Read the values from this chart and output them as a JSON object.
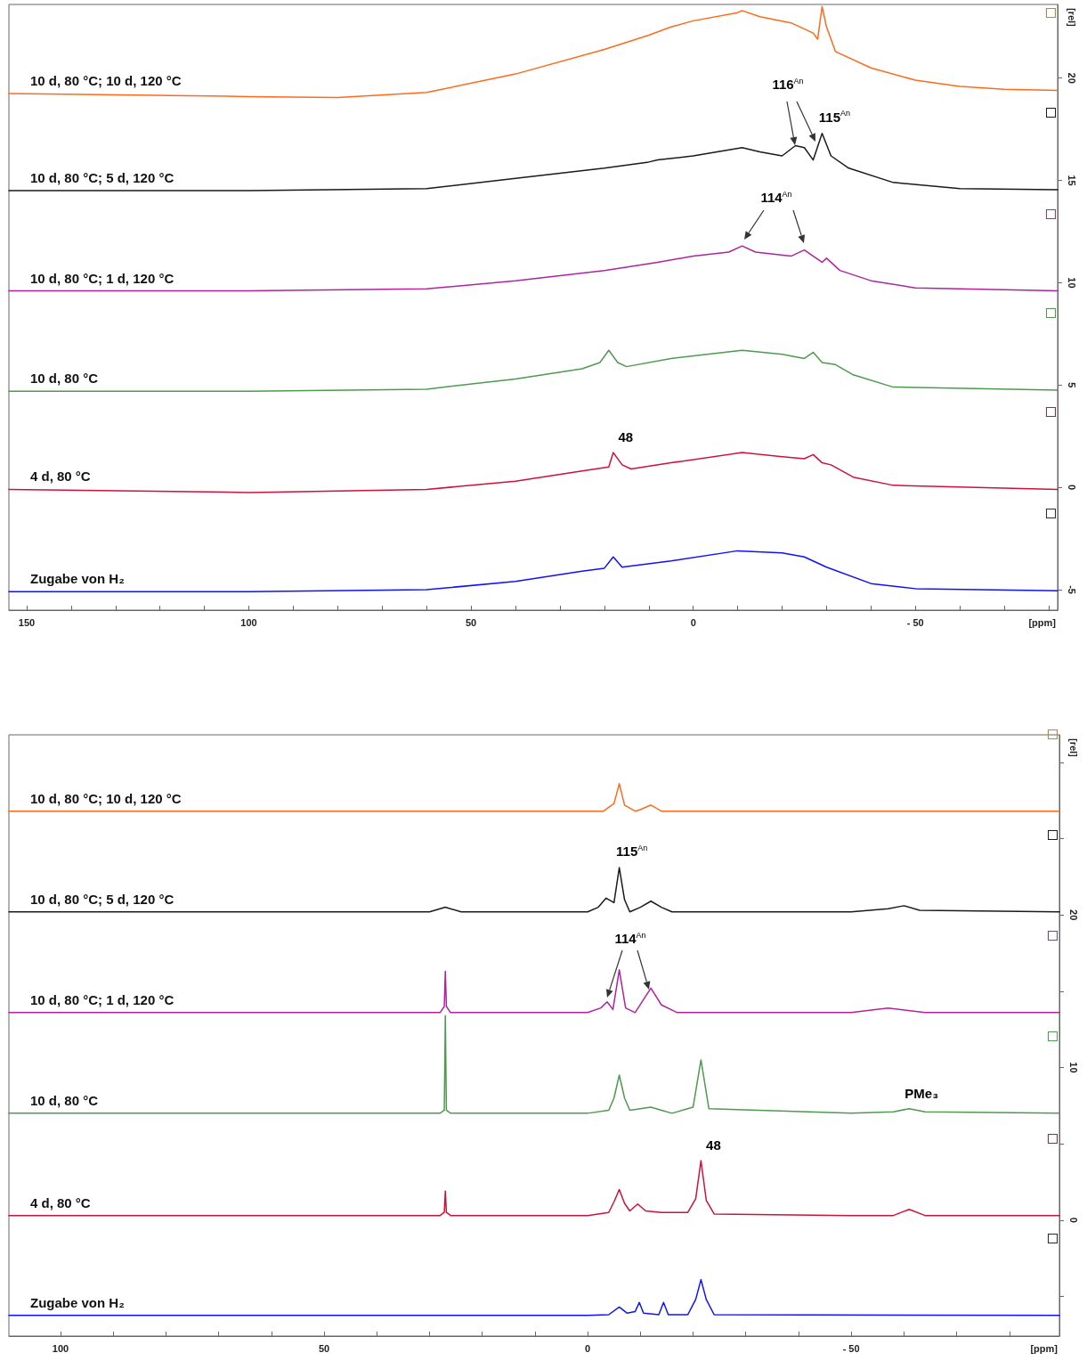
{
  "chart_data": [
    {
      "type": "line",
      "xlabel": "[ppm]",
      "ylabel": "[rel]",
      "xlim": [
        154,
        -82
      ],
      "ylim": [
        -6,
        23.6
      ],
      "xticks": [
        150,
        {
          "value": 140,
          "label": null
        },
        {
          "value": 130,
          "label": null
        },
        {
          "value": 120,
          "label": null
        },
        {
          "value": 110,
          "label": null
        },
        100,
        {
          "value": 90,
          "label": null
        },
        {
          "value": 80,
          "label": null
        },
        {
          "value": 70,
          "label": null
        },
        {
          "value": 60,
          "label": null
        },
        50,
        {
          "value": 40,
          "label": null
        },
        {
          "value": 30,
          "label": null
        },
        {
          "value": 20,
          "label": null
        },
        {
          "value": 10,
          "label": null
        },
        0,
        {
          "value": -10,
          "label": null
        },
        {
          "value": -20,
          "label": null
        },
        {
          "value": -30,
          "label": null
        },
        {
          "value": -40,
          "label": null
        },
        {
          "value": -50,
          "label": "- 50"
        },
        {
          "value": -60,
          "label": null
        },
        {
          "value": -70,
          "label": null
        },
        {
          "value": -80,
          "label": null
        }
      ],
      "yticks": [
        {
          "value": -5,
          "label": "-5"
        },
        0,
        5,
        10,
        15,
        20
      ],
      "grid": false,
      "legend": false,
      "marker": "none",
      "line_style": "solid",
      "series": [
        {
          "name": "10 d, 80 °C; 10 d, 120 °C",
          "color": "#ff6a1a",
          "x": [
            154,
            100,
            80,
            60,
            40,
            20,
            10,
            5,
            0,
            -10,
            -11,
            -15,
            -22,
            -27,
            -28,
            -29,
            -30,
            -32,
            -40,
            -50,
            -60,
            -70,
            -82
          ],
          "values": [
            19.25,
            19.1,
            19.05,
            19.3,
            20.2,
            21.4,
            22.1,
            22.5,
            22.8,
            23.2,
            23.3,
            23.0,
            22.7,
            22.2,
            21.9,
            23.5,
            22.5,
            21.3,
            20.5,
            19.9,
            19.6,
            19.45,
            19.4
          ]
        },
        {
          "name": "10 d, 80 °C; 5 d, 120 °C",
          "color": "#1a1a1a",
          "x": [
            154,
            100,
            60,
            40,
            20,
            10,
            8,
            0,
            -11,
            -15,
            -20,
            -23,
            -25,
            -27,
            -29,
            -31,
            -35,
            -45,
            -60,
            -82
          ],
          "values": [
            14.5,
            14.5,
            14.6,
            15.1,
            15.6,
            15.9,
            16.0,
            16.2,
            16.6,
            16.4,
            16.2,
            16.7,
            16.6,
            16.0,
            17.3,
            16.2,
            15.6,
            14.9,
            14.6,
            14.55
          ]
        },
        {
          "name": "10 d, 80 °C; 1 d, 120 °C",
          "color": "#b0239e",
          "x": [
            154,
            100,
            60,
            40,
            20,
            8,
            0,
            -8,
            -11,
            -14,
            -22,
            -25,
            -27,
            -29,
            -30,
            -33,
            -40,
            -50,
            -82
          ],
          "values": [
            9.6,
            9.6,
            9.7,
            10.1,
            10.6,
            11.0,
            11.3,
            11.5,
            11.8,
            11.5,
            11.3,
            11.6,
            11.3,
            11.0,
            11.2,
            10.6,
            10.1,
            9.75,
            9.6
          ]
        },
        {
          "name": "10 d, 80 °C",
          "color": "#4e9a4e",
          "x": [
            154,
            100,
            60,
            40,
            25,
            21,
            19,
            17,
            15,
            5,
            -11,
            -20,
            -25,
            -27,
            -29,
            -32,
            -36,
            -45,
            -82
          ],
          "values": [
            4.7,
            4.7,
            4.8,
            5.3,
            5.8,
            6.1,
            6.7,
            6.1,
            5.9,
            6.3,
            6.7,
            6.5,
            6.3,
            6.6,
            6.1,
            6.0,
            5.5,
            4.9,
            4.75
          ]
        },
        {
          "name": "4 d, 80 °C",
          "color": "#d0103a",
          "x": [
            154,
            100,
            60,
            40,
            25,
            19,
            18,
            16,
            14,
            5,
            -11,
            -20,
            -25,
            -27,
            -29,
            -31,
            -36,
            -45,
            -82
          ],
          "values": [
            -0.1,
            -0.25,
            -0.1,
            0.3,
            0.8,
            1.0,
            1.7,
            1.1,
            0.9,
            1.2,
            1.7,
            1.5,
            1.4,
            1.6,
            1.2,
            1.1,
            0.5,
            0.1,
            -0.1
          ]
        },
        {
          "name": "Zugabe von H₂",
          "color": "#1010ff",
          "x": [
            154,
            100,
            60,
            40,
            25,
            20,
            18,
            16,
            5,
            -10,
            -20,
            -25,
            -30,
            -40,
            -50,
            -82
          ],
          "values": [
            -5.1,
            -5.1,
            -5.0,
            -4.6,
            -4.1,
            -3.95,
            -3.4,
            -3.9,
            -3.6,
            -3.1,
            -3.2,
            -3.4,
            -3.9,
            -4.7,
            -4.95,
            -5.05
          ]
        }
      ],
      "annotations": [
        "116$^{An}$",
        {
          "text": "115$^{An}$",
          "x": -29,
          "y": 17.3
        },
        "114$^{An}$",
        {
          "text": "48",
          "x": 18,
          "y": 1.7
        }
      ]
    },
    {
      "type": "line",
      "xlabel": "[ppm]",
      "ylabel": "[rel]",
      "xlim": [
        109.8,
        -89.5
      ],
      "ylim": [
        -7.6,
        31.8
      ],
      "xticks": [
        100,
        {
          "value": 90,
          "label": null
        },
        {
          "value": 80,
          "label": null
        },
        {
          "value": 70,
          "label": null
        },
        {
          "value": 60,
          "label": null
        },
        50,
        {
          "value": 40,
          "label": null
        },
        {
          "value": 30,
          "label": null
        },
        {
          "value": 20,
          "label": null
        },
        {
          "value": 10,
          "label": null
        },
        0,
        {
          "value": -10,
          "label": null
        },
        {
          "value": -20,
          "label": null
        },
        {
          "value": -30,
          "label": null
        },
        {
          "value": -40,
          "label": null
        },
        {
          "value": -50,
          "label": "- 50"
        },
        {
          "value": -60,
          "label": null
        },
        {
          "value": -70,
          "label": null
        },
        {
          "value": -80,
          "label": null
        }
      ],
      "yticks": [
        {
          "value": -5,
          "label": null
        },
        0,
        {
          "value": 5,
          "label": null
        },
        10,
        {
          "value": 15,
          "label": null
        },
        20,
        {
          "value": 25,
          "label": null
        },
        {
          "value": 30,
          "label": null
        }
      ],
      "grid": false,
      "legend": false,
      "marker": "none",
      "line_style": "solid",
      "series": [
        {
          "name": "10 d, 80 °C; 10 d, 120 °C",
          "color": "#ff6a1a",
          "x": [
            109.8,
            50,
            0,
            -3,
            -5,
            -6,
            -7,
            -9,
            -10,
            -12,
            -14,
            -30,
            -89.5
          ],
          "values": [
            26.8,
            26.8,
            26.8,
            26.8,
            27.3,
            28.6,
            27.2,
            26.8,
            26.9,
            27.2,
            26.8,
            26.8,
            26.8
          ]
        },
        {
          "name": "10 d, 80 °C; 5 d, 120 °C",
          "color": "#1a1a1a",
          "x": [
            109.8,
            30,
            27,
            24,
            0,
            -2,
            -3.5,
            -5,
            -6,
            -7,
            -8,
            -10,
            -12,
            -14,
            -16,
            -50,
            -57,
            -60,
            -63,
            -89.5
          ],
          "values": [
            20.2,
            20.2,
            20.5,
            20.2,
            20.2,
            20.5,
            21.1,
            20.8,
            23.1,
            21.0,
            20.2,
            20.5,
            20.9,
            20.5,
            20.2,
            20.2,
            20.4,
            20.6,
            20.3,
            20.2
          ]
        },
        {
          "name": "10 d, 80 °C; 1 d, 120 °C",
          "color": "#b0239e",
          "x": [
            109.8,
            28,
            27.2,
            27,
            26.8,
            26,
            0,
            -2.5,
            -3.7,
            -4.8,
            -6,
            -7.2,
            -9,
            -10.5,
            -12,
            -14,
            -17,
            -50,
            -57,
            -64,
            -89.5
          ],
          "values": [
            13.6,
            13.6,
            14,
            16.3,
            14,
            13.6,
            13.6,
            13.9,
            14.3,
            13.8,
            16.4,
            13.9,
            13.6,
            14.4,
            15.2,
            14.1,
            13.6,
            13.6,
            13.9,
            13.6,
            13.6
          ]
        },
        {
          "name": "10 d, 80 °C",
          "color": "#4e9a4e",
          "x": [
            109.8,
            28,
            27.2,
            27,
            26.8,
            26,
            0,
            -4,
            -5,
            -6,
            -7,
            -8,
            -10,
            -12,
            -14,
            -16,
            -20,
            -21.5,
            -23,
            -50,
            -58,
            -61,
            -64,
            -89.5
          ],
          "values": [
            7.0,
            7.0,
            7.2,
            13.4,
            7.2,
            7.0,
            7.0,
            7.2,
            8.0,
            9.5,
            8.0,
            7.2,
            7.3,
            7.4,
            7.2,
            7.0,
            7.4,
            10.5,
            7.3,
            7.0,
            7.1,
            7.3,
            7.1,
            7.0
          ]
        },
        {
          "name": "4 d, 80 °C",
          "color": "#d0103a",
          "x": [
            109.8,
            28,
            27.2,
            27,
            26.8,
            26,
            0,
            -4,
            -5,
            -6,
            -7,
            -8,
            -9.5,
            -11,
            -14,
            -19,
            -20.5,
            -21.5,
            -22.5,
            -24,
            -50,
            -58,
            -61,
            -64,
            -89.5
          ],
          "values": [
            0.3,
            0.3,
            0.5,
            1.9,
            0.5,
            0.3,
            0.3,
            0.5,
            1.2,
            2.0,
            1.1,
            0.6,
            1.05,
            0.6,
            0.5,
            0.5,
            1.4,
            3.9,
            1.3,
            0.4,
            0.3,
            0.3,
            0.7,
            0.3,
            0.3
          ]
        },
        {
          "name": "Zugabe von H₂",
          "color": "#1010ff",
          "x": [
            109.8,
            0,
            -4,
            -6,
            -7.5,
            -9,
            -9.8,
            -10.6,
            -13.5,
            -14.4,
            -15.3,
            -19,
            -20.5,
            -21.5,
            -22.5,
            -24,
            -89.5
          ],
          "values": [
            -6.25,
            -6.25,
            -6.2,
            -5.7,
            -6.1,
            -6.0,
            -5.4,
            -6.1,
            -6.2,
            -5.4,
            -6.2,
            -6.2,
            -5.2,
            -3.9,
            -5.2,
            -6.2,
            -6.25
          ]
        }
      ],
      "annotations": [
        {
          "text": "115$^{An}$",
          "x": -6,
          "y": 23.1
        },
        "114$^{An}$",
        {
          "text": "48",
          "x": -21.5,
          "y": 3.9
        },
        {
          "text": "PMe₃",
          "x": -61,
          "y": 7.3
        }
      ]
    }
  ]
}
